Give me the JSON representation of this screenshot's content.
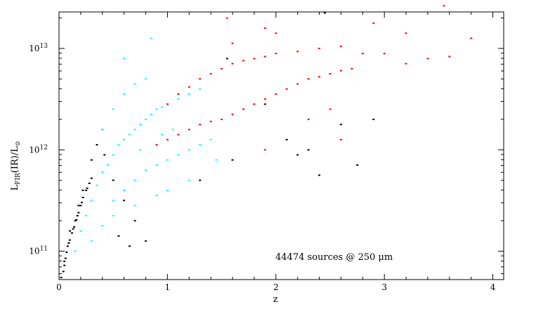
{
  "chart_data": {
    "type": "scatter",
    "xlabel": "z",
    "ylabel": "L",
    "ylabel_sub": "FIR",
    "ylabel_mid": "(IR)/L",
    "ylabel_sub2": "⊙",
    "xlim": [
      0,
      4.1
    ],
    "ylim_log10": [
      10.72,
      13.36
    ],
    "y_scale": "log",
    "x_ticks": [
      0,
      1,
      2,
      3,
      4
    ],
    "x_tick_labels": [
      "0",
      "1",
      "2",
      "3",
      "4"
    ],
    "y_ticks_log10": [
      11,
      12,
      13
    ],
    "y_tick_labels": [
      {
        "base": "10",
        "exp": "11"
      },
      {
        "base": "10",
        "exp": "12"
      },
      {
        "base": "10",
        "exp": "13"
      }
    ],
    "annotation": "44474 sources @ 250 μm",
    "grid": false,
    "legend": "none",
    "series": [
      {
        "color": "#000000",
        "points": [
          [
            0.02,
            10.74
          ],
          [
            0.04,
            10.8
          ],
          [
            0.05,
            10.86
          ],
          [
            0.06,
            10.93
          ],
          [
            0.07,
            10.99
          ],
          [
            0.08,
            11.05
          ],
          [
            0.1,
            11.11
          ],
          [
            0.12,
            11.18
          ],
          [
            0.14,
            11.24
          ],
          [
            0.16,
            11.31
          ],
          [
            0.18,
            11.38
          ],
          [
            0.2,
            11.45
          ],
          [
            0.22,
            11.53
          ],
          [
            0.25,
            11.6
          ],
          [
            0.28,
            11.67
          ],
          [
            0.05,
            10.9
          ],
          [
            0.09,
            11.08
          ],
          [
            0.13,
            11.22
          ],
          [
            0.17,
            11.35
          ],
          [
            0.21,
            11.48
          ],
          [
            0.26,
            11.62
          ],
          [
            0.3,
            11.72
          ],
          [
            0.1,
            11.2
          ],
          [
            0.15,
            11.3
          ],
          [
            0.3,
            11.9
          ],
          [
            0.35,
            12.05
          ],
          [
            0.4,
            12.2
          ],
          [
            0.42,
            11.95
          ],
          [
            0.5,
            11.7
          ],
          [
            0.6,
            11.5
          ],
          [
            0.7,
            11.3
          ],
          [
            0.8,
            11.1
          ],
          [
            1.3,
            11.7
          ],
          [
            1.6,
            11.9
          ],
          [
            2.1,
            12.1
          ],
          [
            2.3,
            12.0
          ],
          [
            2.4,
            11.75
          ],
          [
            2.6,
            12.25
          ],
          [
            2.75,
            11.85
          ],
          [
            2.9,
            12.3
          ],
          [
            2.45,
            13.35
          ],
          [
            1.55,
            12.9
          ],
          [
            2.2,
            11.95
          ],
          [
            1.9,
            12.45
          ],
          [
            0.55,
            11.15
          ],
          [
            0.65,
            11.05
          ],
          [
            0.22,
            11.6
          ],
          [
            0.18,
            11.45
          ]
        ]
      },
      {
        "color": "#00ffff",
        "points": [
          [
            0.15,
            11.0
          ],
          [
            0.2,
            11.2
          ],
          [
            0.25,
            11.35
          ],
          [
            0.3,
            11.5
          ],
          [
            0.35,
            11.65
          ],
          [
            0.4,
            11.78
          ],
          [
            0.45,
            11.85
          ],
          [
            0.5,
            11.95
          ],
          [
            0.55,
            12.05
          ],
          [
            0.6,
            12.1
          ],
          [
            0.65,
            12.15
          ],
          [
            0.7,
            12.2
          ],
          [
            0.75,
            12.25
          ],
          [
            0.8,
            12.3
          ],
          [
            0.85,
            12.35
          ],
          [
            0.9,
            12.4
          ],
          [
            0.95,
            12.42
          ],
          [
            1.0,
            12.45
          ],
          [
            1.1,
            12.5
          ],
          [
            1.2,
            12.55
          ],
          [
            1.3,
            12.6
          ],
          [
            0.5,
            11.5
          ],
          [
            0.6,
            11.6
          ],
          [
            0.7,
            11.7
          ],
          [
            0.8,
            11.8
          ],
          [
            0.9,
            11.85
          ],
          [
            1.0,
            11.9
          ],
          [
            1.1,
            11.95
          ],
          [
            1.2,
            12.0
          ],
          [
            1.3,
            12.05
          ],
          [
            1.4,
            12.1
          ],
          [
            0.4,
            12.2
          ],
          [
            0.5,
            12.4
          ],
          [
            0.6,
            12.55
          ],
          [
            0.7,
            12.65
          ],
          [
            0.8,
            12.7
          ],
          [
            0.85,
            13.1
          ],
          [
            0.6,
            12.9
          ],
          [
            0.3,
            11.1
          ],
          [
            0.4,
            11.25
          ],
          [
            0.5,
            11.35
          ],
          [
            0.7,
            11.45
          ],
          [
            0.9,
            11.55
          ],
          [
            1.0,
            11.6
          ],
          [
            1.2,
            11.7
          ],
          [
            1.45,
            11.9
          ],
          [
            0.75,
            12.0
          ],
          [
            0.95,
            12.15
          ],
          [
            1.05,
            12.2
          ]
        ]
      },
      {
        "color": "#ff0000",
        "points": [
          [
            0.9,
            12.05
          ],
          [
            1.0,
            12.1
          ],
          [
            1.1,
            12.15
          ],
          [
            1.2,
            12.2
          ],
          [
            1.3,
            12.25
          ],
          [
            1.4,
            12.28
          ],
          [
            1.5,
            12.3
          ],
          [
            1.6,
            12.35
          ],
          [
            1.7,
            12.4
          ],
          [
            1.8,
            12.45
          ],
          [
            1.9,
            12.5
          ],
          [
            2.0,
            12.55
          ],
          [
            2.1,
            12.6
          ],
          [
            2.2,
            12.65
          ],
          [
            2.3,
            12.7
          ],
          [
            2.4,
            12.72
          ],
          [
            2.5,
            12.75
          ],
          [
            2.6,
            12.78
          ],
          [
            2.7,
            12.8
          ],
          [
            1.0,
            12.45
          ],
          [
            1.1,
            12.55
          ],
          [
            1.2,
            12.62
          ],
          [
            1.3,
            12.7
          ],
          [
            1.4,
            12.75
          ],
          [
            1.5,
            12.8
          ],
          [
            1.6,
            12.85
          ],
          [
            1.7,
            12.88
          ],
          [
            1.8,
            12.9
          ],
          [
            1.9,
            12.92
          ],
          [
            2.0,
            12.95
          ],
          [
            2.2,
            12.97
          ],
          [
            2.4,
            13.0
          ],
          [
            2.6,
            13.02
          ],
          [
            2.8,
            12.95
          ],
          [
            3.0,
            12.95
          ],
          [
            3.2,
            12.85
          ],
          [
            3.4,
            12.9
          ],
          [
            3.6,
            12.92
          ],
          [
            3.8,
            13.1
          ],
          [
            3.55,
            13.42
          ],
          [
            3.2,
            13.15
          ],
          [
            2.9,
            13.25
          ],
          [
            2.0,
            13.15
          ],
          [
            1.6,
            13.05
          ],
          [
            1.55,
            13.3
          ],
          [
            1.9,
            13.2
          ],
          [
            2.5,
            12.4
          ],
          [
            2.6,
            12.1
          ],
          [
            2.3,
            12.3
          ],
          [
            1.9,
            12.0
          ]
        ]
      }
    ]
  }
}
